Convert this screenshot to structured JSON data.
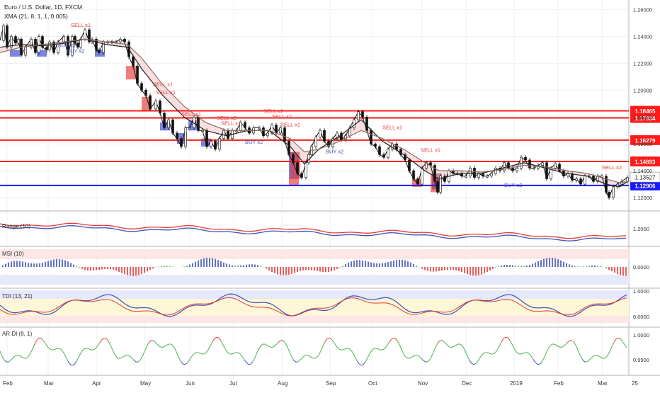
{
  "chart_data": {
    "type": "candlestick",
    "title": "Euro / U.S. Dollar, 1D, FXCM",
    "overlay_label": "XMA (21, 8, 1, 1, 0.005)",
    "x_labels": [
      "Feb",
      "Mar",
      "Apr",
      "May",
      "Jun",
      "Jul",
      "Aug",
      "Sep",
      "Oct",
      "Nov",
      "Dec",
      "2019",
      "Feb",
      "Mar",
      "25"
    ],
    "main": {
      "ylim": [
        1.11,
        1.264
      ],
      "ticks": [
        "1.26000",
        "1.24000",
        "1.22000",
        "1.20000",
        "1.18000",
        "1.16000",
        "1.14000",
        "1.12000"
      ],
      "horizontal_levels": [
        {
          "value": 1.18465,
          "label": "1.18465",
          "color": "#ff1a1a"
        },
        {
          "value": 1.17934,
          "label": "1.17934",
          "color": "#ff1a1a"
        },
        {
          "value": 1.16279,
          "label": "1.16279",
          "color": "#ff1a1a"
        },
        {
          "value": 1.14693,
          "label": "1.14693",
          "color": "#ff1a1a"
        },
        {
          "value": 1.12906,
          "label": "1.12906",
          "color": "#1a1aff"
        }
      ],
      "price_tag": {
        "value": 1.13527,
        "label": "1.13527"
      },
      "price_path": [
        [
          0,
          1.237
        ],
        [
          5,
          1.248
        ],
        [
          10,
          1.232
        ],
        [
          16,
          1.24
        ],
        [
          22,
          1.235
        ],
        [
          26,
          1.238
        ],
        [
          30,
          1.226
        ],
        [
          36,
          1.232
        ],
        [
          44,
          1.238
        ],
        [
          50,
          1.228
        ],
        [
          55,
          1.24
        ],
        [
          60,
          1.232
        ],
        [
          66,
          1.23
        ],
        [
          70,
          1.236
        ],
        [
          76,
          1.228
        ],
        [
          82,
          1.236
        ],
        [
          90,
          1.24
        ],
        [
          96,
          1.226
        ],
        [
          102,
          1.24
        ],
        [
          106,
          1.235
        ],
        [
          110,
          1.232
        ],
        [
          114,
          1.238
        ],
        [
          120,
          1.245
        ],
        [
          126,
          1.236
        ],
        [
          130,
          1.238
        ],
        [
          136,
          1.23
        ],
        [
          140,
          1.228
        ],
        [
          146,
          1.236
        ],
        [
          152,
          1.236
        ],
        [
          158,
          1.236
        ],
        [
          164,
          1.236
        ],
        [
          170,
          1.238
        ],
        [
          176,
          1.236
        ],
        [
          182,
          1.225
        ],
        [
          188,
          1.218
        ],
        [
          194,
          1.205
        ],
        [
          200,
          1.2
        ],
        [
          206,
          1.196
        ],
        [
          212,
          1.186
        ],
        [
          220,
          1.192
        ],
        [
          226,
          1.183
        ],
        [
          232,
          1.172
        ],
        [
          238,
          1.178
        ],
        [
          244,
          1.168
        ],
        [
          250,
          1.164
        ],
        [
          256,
          1.158
        ],
        [
          262,
          1.172
        ],
        [
          268,
          1.172
        ],
        [
          274,
          1.18
        ],
        [
          280,
          1.17
        ],
        [
          286,
          1.17
        ],
        [
          292,
          1.158
        ],
        [
          298,
          1.162
        ],
        [
          304,
          1.156
        ],
        [
          310,
          1.164
        ],
        [
          316,
          1.17
        ],
        [
          322,
          1.164
        ],
        [
          328,
          1.17
        ],
        [
          334,
          1.17
        ],
        [
          340,
          1.176
        ],
        [
          346,
          1.172
        ],
        [
          352,
          1.168
        ],
        [
          358,
          1.172
        ],
        [
          366,
          1.172
        ],
        [
          372,
          1.166
        ],
        [
          378,
          1.168
        ],
        [
          384,
          1.174
        ],
        [
          390,
          1.168
        ],
        [
          396,
          1.172
        ],
        [
          402,
          1.162
        ],
        [
          408,
          1.152
        ],
        [
          414,
          1.146
        ],
        [
          420,
          1.138
        ],
        [
          426,
          1.135
        ],
        [
          432,
          1.146
        ],
        [
          436,
          1.152
        ],
        [
          440,
          1.158
        ],
        [
          446,
          1.165
        ],
        [
          452,
          1.17
        ],
        [
          458,
          1.162
        ],
        [
          464,
          1.158
        ],
        [
          470,
          1.164
        ],
        [
          476,
          1.168
        ],
        [
          482,
          1.163
        ],
        [
          488,
          1.166
        ],
        [
          494,
          1.172
        ],
        [
          500,
          1.178
        ],
        [
          506,
          1.184
        ],
        [
          512,
          1.18
        ],
        [
          518,
          1.17
        ],
        [
          524,
          1.16
        ],
        [
          530,
          1.158
        ],
        [
          536,
          1.152
        ],
        [
          542,
          1.15
        ],
        [
          548,
          1.156
        ],
        [
          554,
          1.16
        ],
        [
          560,
          1.156
        ],
        [
          566,
          1.152
        ],
        [
          572,
          1.148
        ],
        [
          578,
          1.14
        ],
        [
          584,
          1.134
        ],
        [
          590,
          1.13
        ],
        [
          596,
          1.142
        ],
        [
          602,
          1.146
        ],
        [
          608,
          1.144
        ],
        [
          614,
          1.132
        ],
        [
          618,
          1.124
        ],
        [
          622,
          1.136
        ],
        [
          628,
          1.132
        ],
        [
          634,
          1.14
        ],
        [
          640,
          1.138
        ],
        [
          646,
          1.138
        ],
        [
          652,
          1.136
        ],
        [
          658,
          1.136
        ],
        [
          664,
          1.142
        ],
        [
          670,
          1.135
        ],
        [
          676,
          1.138
        ],
        [
          682,
          1.136
        ],
        [
          688,
          1.136
        ],
        [
          694,
          1.138
        ],
        [
          700,
          1.142
        ],
        [
          706,
          1.14
        ],
        [
          712,
          1.146
        ],
        [
          718,
          1.142
        ],
        [
          724,
          1.14
        ],
        [
          730,
          1.142
        ],
        [
          736,
          1.15
        ],
        [
          742,
          1.148
        ],
        [
          748,
          1.142
        ],
        [
          754,
          1.142
        ],
        [
          760,
          1.144
        ],
        [
          766,
          1.146
        ],
        [
          772,
          1.134
        ],
        [
          778,
          1.142
        ],
        [
          784,
          1.145
        ],
        [
          790,
          1.14
        ],
        [
          796,
          1.136
        ],
        [
          802,
          1.138
        ],
        [
          808,
          1.133
        ],
        [
          814,
          1.134
        ],
        [
          820,
          1.13
        ],
        [
          826,
          1.136
        ],
        [
          832,
          1.136
        ],
        [
          838,
          1.132
        ],
        [
          844,
          1.136
        ],
        [
          850,
          1.136
        ],
        [
          856,
          1.124
        ],
        [
          860,
          1.12
        ],
        [
          866,
          1.128
        ],
        [
          872,
          1.13
        ],
        [
          878,
          1.132
        ],
        [
          886,
          1.135
        ]
      ],
      "ma_fast": [
        [
          0,
          1.232
        ],
        [
          30,
          1.234
        ],
        [
          60,
          1.233
        ],
        [
          90,
          1.235
        ],
        [
          120,
          1.238
        ],
        [
          150,
          1.234
        ],
        [
          180,
          1.232
        ],
        [
          200,
          1.216
        ],
        [
          230,
          1.196
        ],
        [
          260,
          1.18
        ],
        [
          290,
          1.17
        ],
        [
          320,
          1.166
        ],
        [
          350,
          1.17
        ],
        [
          380,
          1.17
        ],
        [
          410,
          1.158
        ],
        [
          430,
          1.145
        ],
        [
          450,
          1.156
        ],
        [
          480,
          1.166
        ],
        [
          510,
          1.178
        ],
        [
          540,
          1.162
        ],
        [
          570,
          1.152
        ],
        [
          600,
          1.14
        ],
        [
          620,
          1.134
        ],
        [
          650,
          1.138
        ],
        [
          680,
          1.138
        ],
        [
          710,
          1.142
        ],
        [
          740,
          1.146
        ],
        [
          770,
          1.142
        ],
        [
          800,
          1.138
        ],
        [
          830,
          1.136
        ],
        [
          855,
          1.13
        ],
        [
          875,
          1.128
        ],
        [
          886,
          1.132
        ]
      ],
      "ma_slow": [
        [
          0,
          1.228
        ],
        [
          30,
          1.232
        ],
        [
          60,
          1.234
        ],
        [
          90,
          1.236
        ],
        [
          120,
          1.238
        ],
        [
          150,
          1.236
        ],
        [
          180,
          1.234
        ],
        [
          200,
          1.224
        ],
        [
          230,
          1.204
        ],
        [
          260,
          1.188
        ],
        [
          290,
          1.176
        ],
        [
          320,
          1.17
        ],
        [
          350,
          1.17
        ],
        [
          380,
          1.17
        ],
        [
          410,
          1.164
        ],
        [
          430,
          1.154
        ],
        [
          450,
          1.156
        ],
        [
          480,
          1.162
        ],
        [
          510,
          1.17
        ],
        [
          540,
          1.164
        ],
        [
          570,
          1.156
        ],
        [
          600,
          1.146
        ],
        [
          620,
          1.14
        ],
        [
          650,
          1.14
        ],
        [
          680,
          1.139
        ],
        [
          710,
          1.141
        ],
        [
          740,
          1.144
        ],
        [
          770,
          1.143
        ],
        [
          800,
          1.14
        ],
        [
          830,
          1.138
        ],
        [
          855,
          1.134
        ],
        [
          875,
          1.131
        ],
        [
          886,
          1.132
        ]
      ],
      "signals": [
        {
          "x": 100,
          "price": 1.247,
          "label": "SELL x1",
          "side": "sell"
        },
        {
          "x": 216,
          "price": 1.203,
          "label": "SELL x1",
          "side": "sell"
        },
        {
          "x": 220,
          "price": 1.197,
          "label": "SELL x1",
          "side": "sell"
        },
        {
          "x": 256,
          "price": 1.181,
          "label": "SELL x1",
          "side": "sell"
        },
        {
          "x": 306,
          "price": 1.178,
          "label": "SELL x2",
          "side": "sell"
        },
        {
          "x": 312,
          "price": 1.174,
          "label": "SELL x1",
          "side": "sell"
        },
        {
          "x": 372,
          "price": 1.183,
          "label": "SELL x2",
          "side": "sell"
        },
        {
          "x": 384,
          "price": 1.179,
          "label": "SELL x2",
          "side": "sell"
        },
        {
          "x": 396,
          "price": 1.173,
          "label": "SELL x1",
          "side": "sell"
        },
        {
          "x": 540,
          "price": 1.171,
          "label": "SELL x1",
          "side": "sell"
        },
        {
          "x": 594,
          "price": 1.154,
          "label": "SELL x1",
          "side": "sell"
        },
        {
          "x": 850,
          "price": 1.141,
          "label": "SELL x2",
          "side": "sell"
        },
        {
          "x": 82,
          "price": 1.232,
          "label": "BUY x1",
          "side": "buy"
        },
        {
          "x": 94,
          "price": 1.228,
          "label": "BUY x2",
          "side": "buy"
        },
        {
          "x": 346,
          "price": 1.16,
          "label": "BUY x2",
          "side": "buy"
        },
        {
          "x": 460,
          "price": 1.153,
          "label": "BUY x2",
          "side": "buy"
        },
        {
          "x": 712,
          "price": 1.128,
          "label": "BUY x2",
          "side": "buy"
        }
      ],
      "blue_boxes": [
        [
          20,
          1.23,
          1.225
        ],
        [
          58,
          1.23,
          1.225
        ],
        [
          140,
          1.23,
          1.225
        ],
        [
          232,
          1.176,
          1.17
        ],
        [
          256,
          1.168,
          1.16
        ],
        [
          272,
          1.178,
          1.17
        ],
        [
          290,
          1.164,
          1.158
        ],
        [
          414,
          1.154,
          1.134
        ],
        [
          616,
          1.138,
          1.126
        ]
      ],
      "red_boxes": [
        [
          184,
          1.218,
          1.208
        ],
        [
          206,
          1.195,
          1.185
        ],
        [
          416,
          1.154,
          1.134
        ],
        [
          414,
          1.135,
          1.129
        ],
        [
          588,
          1.134,
          1.128
        ],
        [
          614,
          1.138,
          1.124
        ]
      ]
    },
    "panels": [
      {
        "name": "Range (10)",
        "tick": "1.2000"
      },
      {
        "name": "MSI (10)",
        "tick": "0.0000"
      },
      {
        "name": "TDI (13, 21)",
        "ticks": [
          "1.0000",
          "0.0000"
        ]
      },
      {
        "name": "AR DI (8, 1)",
        "ticks": [
          "1.0000",
          "0.9900"
        ]
      }
    ],
    "colors": {
      "sell": "#e53935",
      "buy": "#3f51b5",
      "level_red": "#ff1a1a",
      "level_blue": "#1a1aff",
      "ma_fast": "#222222",
      "ma_slow": "#8d6e63"
    }
  }
}
